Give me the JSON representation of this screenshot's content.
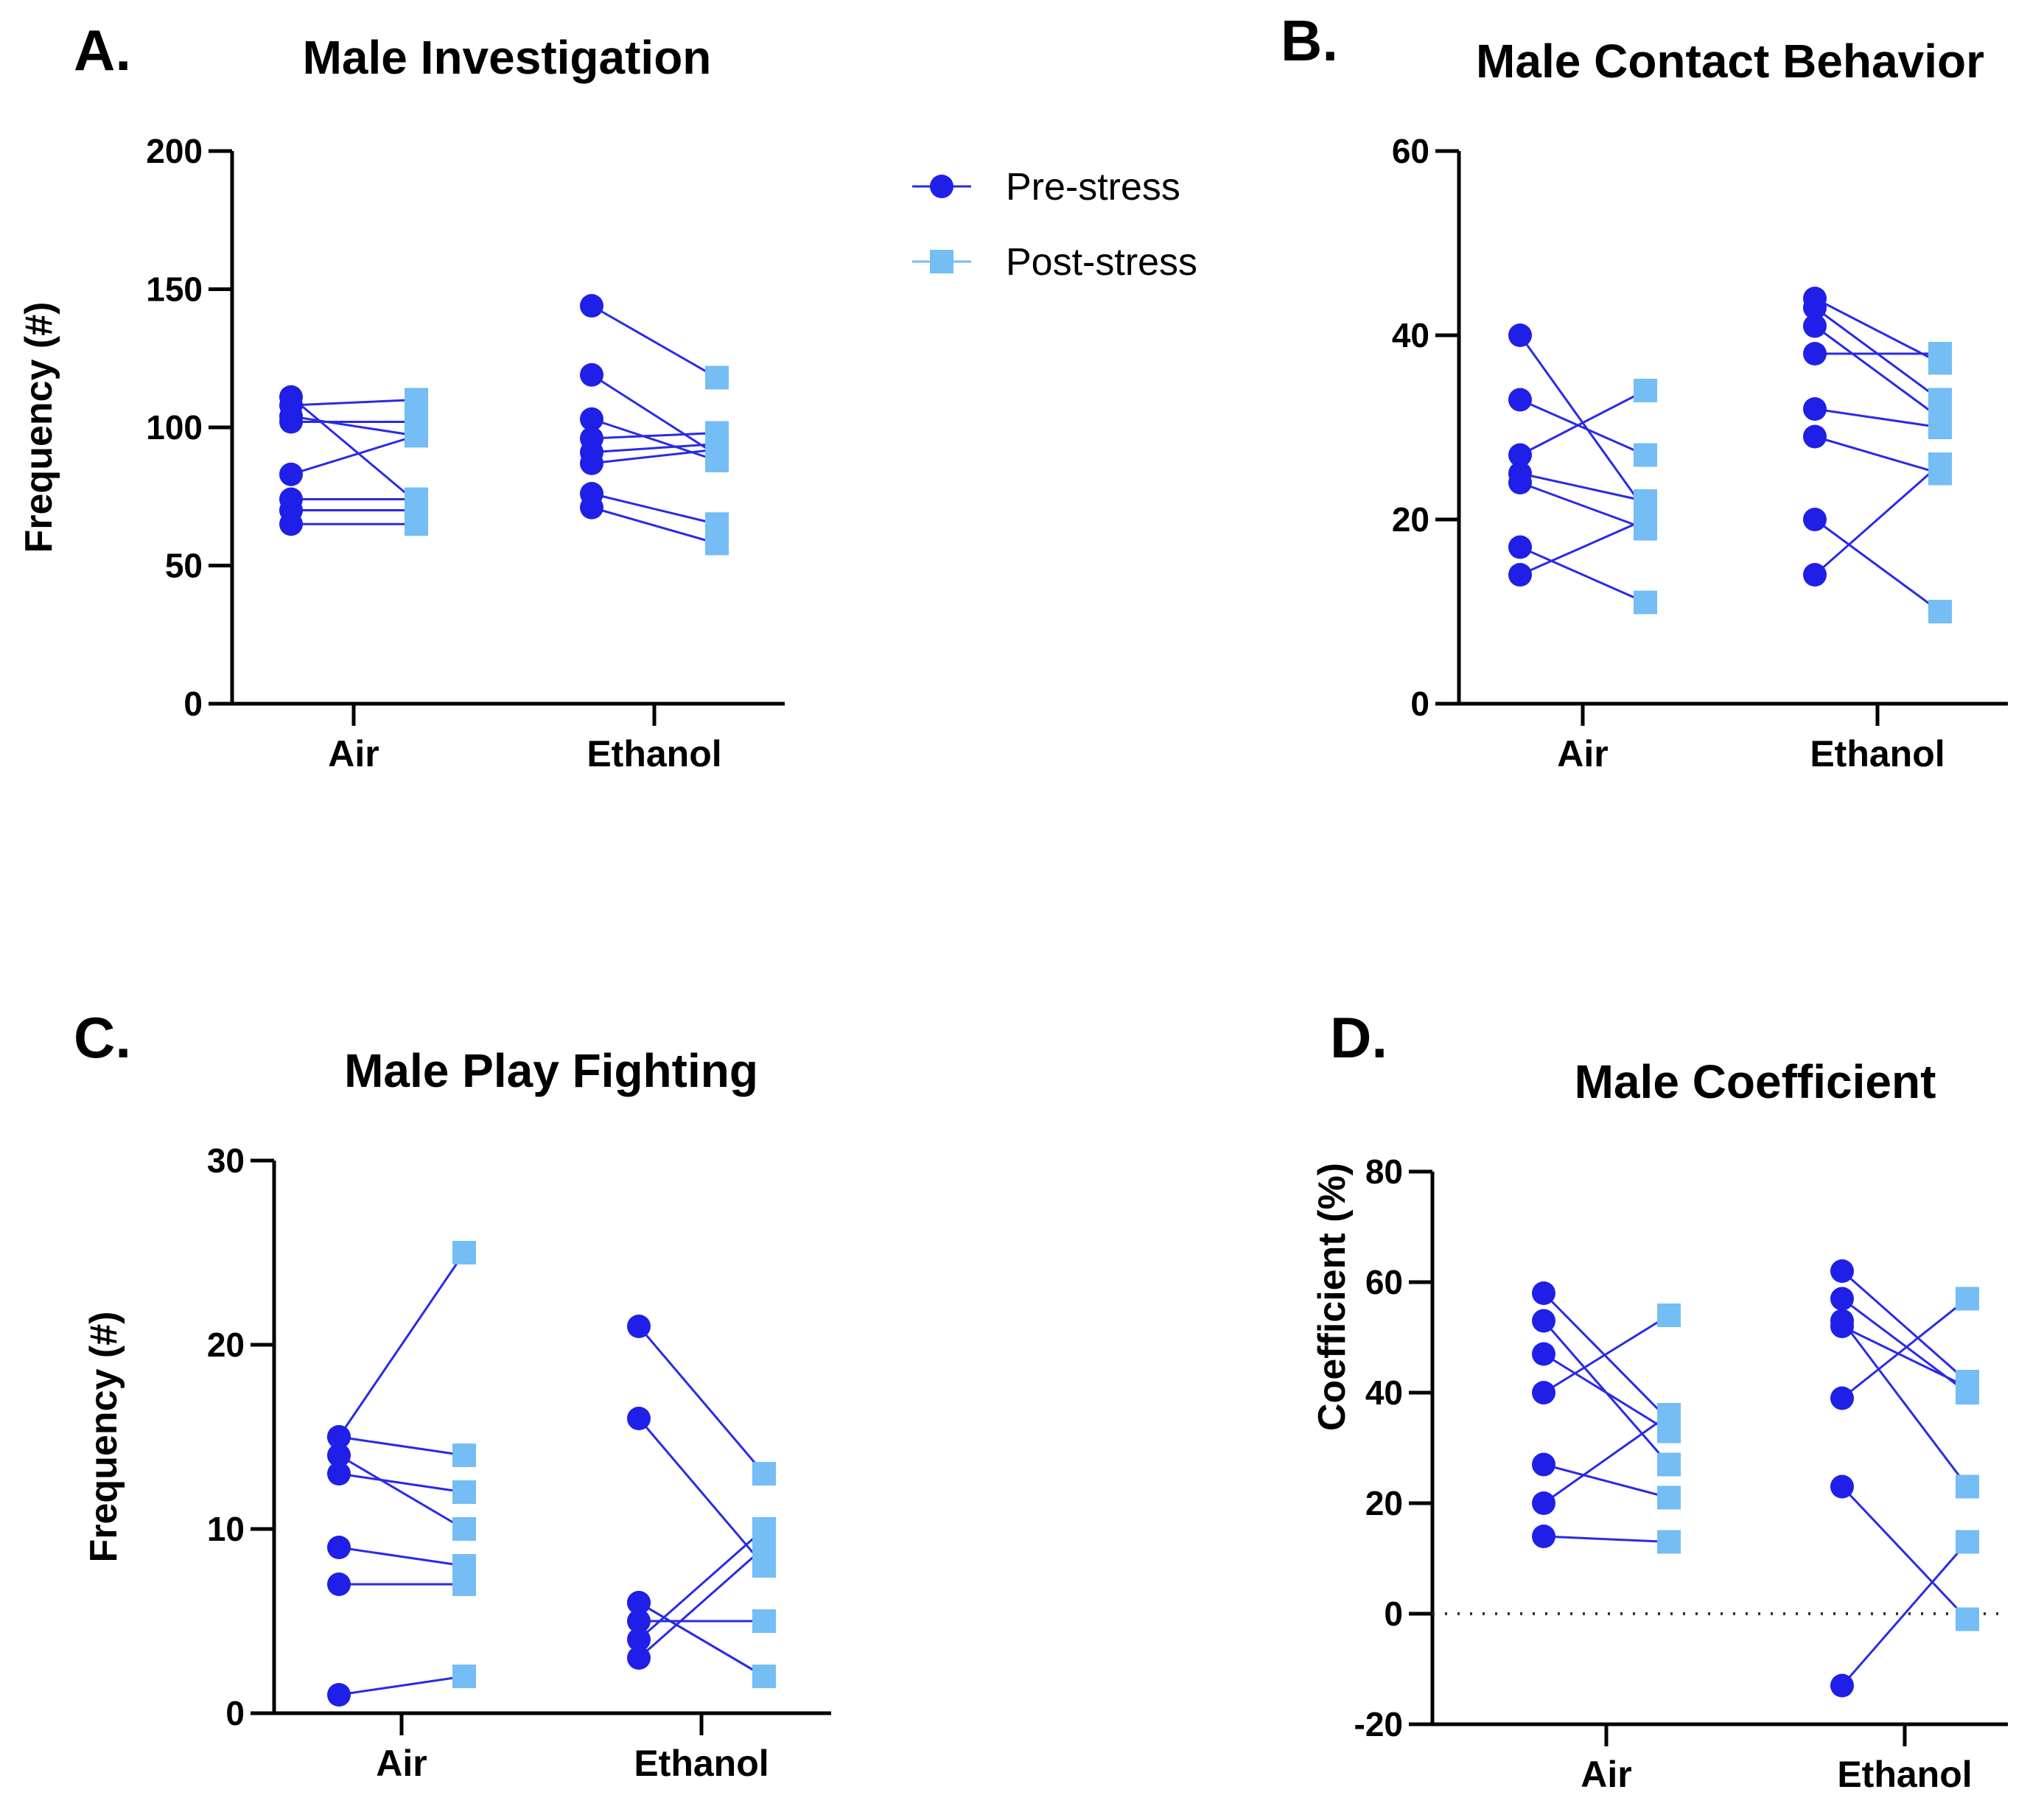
{
  "legend": {
    "entries": [
      {
        "label": "Pre-stress",
        "color": "#1f1fe8",
        "marker": "circle"
      },
      {
        "label": "Post-stress",
        "color": "#74bdf5",
        "marker": "square"
      }
    ]
  },
  "line_color": "#2a2ae6",
  "chart_data": [
    {
      "id": "A",
      "letter": "A.",
      "type": "scatter",
      "title": "Male Investigation",
      "ylabel": "Frequency (#)",
      "ylim": [
        0,
        200
      ],
      "yticks": [
        "0",
        "50",
        "100",
        "150",
        "200"
      ],
      "categories": [
        "Air",
        "Ethanol"
      ],
      "series": [
        {
          "name": "Pre-stress",
          "groups": [
            [
              111,
              108,
              104,
              102,
              83,
              74,
              70,
              65
            ],
            [
              144,
              119,
              103,
              96,
              91,
              87,
              76,
              71
            ]
          ]
        },
        {
          "name": "Post-stress",
          "groups": [
            [
              73,
              110,
              97,
              102,
              97,
              74,
              70,
              65
            ],
            [
              118,
              90,
              88,
              98,
              94,
              92,
              65,
              58
            ]
          ]
        }
      ]
    },
    {
      "id": "B",
      "letter": "B.",
      "type": "scatter",
      "title": "Male Contact Behavior",
      "ylabel": "",
      "ylim": [
        0,
        60
      ],
      "yticks": [
        "0",
        "20",
        "40",
        "60"
      ],
      "categories": [
        "Air",
        "Ethanol"
      ],
      "series": [
        {
          "name": "Pre-stress",
          "groups": [
            [
              40,
              33,
              27,
              25,
              24,
              17,
              14
            ],
            [
              44,
              43,
              41,
              38,
              32,
              29,
              20,
              14
            ]
          ]
        },
        {
          "name": "Post-stress",
          "groups": [
            [
              21,
              27,
              34,
              22,
              19,
              11,
              20
            ],
            [
              37,
              33,
              31,
              38,
              30,
              25,
              10,
              26
            ]
          ]
        }
      ]
    },
    {
      "id": "C",
      "letter": "C.",
      "type": "scatter",
      "title": "Male Play Fighting",
      "ylabel": "Frequency (#)",
      "ylim": [
        0,
        30
      ],
      "yticks": [
        "0",
        "10",
        "20",
        "30"
      ],
      "categories": [
        "Air",
        "Ethanol"
      ],
      "series": [
        {
          "name": "Pre-stress",
          "groups": [
            [
              15,
              15,
              14,
              13,
              9,
              7,
              1
            ],
            [
              21,
              16,
              6,
              5,
              4,
              3,
              6
            ]
          ]
        },
        {
          "name": "Post-stress",
          "groups": [
            [
              25,
              14,
              10,
              12,
              8,
              7,
              2
            ],
            [
              13,
              8,
              2,
              5,
              10,
              9,
              2
            ]
          ]
        }
      ]
    },
    {
      "id": "D",
      "letter": "D.",
      "type": "scatter",
      "title": "Male Coefficient",
      "ylabel": "Coefficient (%)",
      "ylim": [
        -20,
        80
      ],
      "yticks": [
        "-20",
        "0",
        "20",
        "40",
        "60",
        "80"
      ],
      "categories": [
        "Air",
        "Ethanol"
      ],
      "reference_line": 0,
      "series": [
        {
          "name": "Pre-stress",
          "groups": [
            [
              58,
              53,
              47,
              40,
              27,
              20,
              14
            ],
            [
              62,
              57,
              53,
              52,
              39,
              23,
              -13
            ]
          ]
        },
        {
          "name": "Post-stress",
          "groups": [
            [
              35,
              27,
              33,
              54,
              21,
              36,
              13
            ],
            [
              42,
              40,
              23,
              41,
              57,
              -1,
              13
            ]
          ]
        }
      ]
    }
  ]
}
